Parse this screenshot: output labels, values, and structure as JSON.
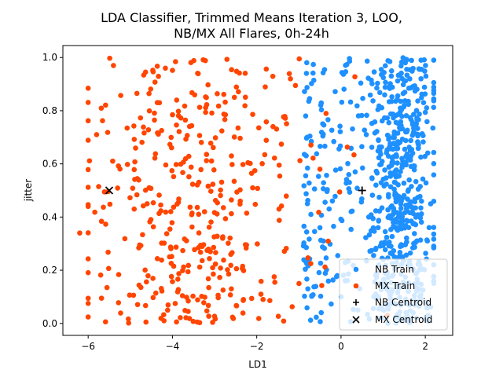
{
  "chart_data": {
    "type": "scatter",
    "title_lines": [
      "LDA Classifier, Trimmed Means Iteration 3, LOO,",
      "NB/MX All Flares, 0h-24h"
    ],
    "xlabel": "LD1",
    "ylabel": "jitter",
    "xlim": [
      -6.6,
      2.65
    ],
    "ylim": [
      -0.045,
      1.045
    ],
    "xticks": [
      -6,
      -4,
      -2,
      0,
      2
    ],
    "xtick_labels": [
      "−6",
      "−4",
      "−2",
      "0",
      "2"
    ],
    "yticks": [
      0.0,
      0.2,
      0.4,
      0.6,
      0.8,
      1.0
    ],
    "ytick_labels": [
      "0.0",
      "0.2",
      "0.4",
      "0.6",
      "0.8",
      "1.0"
    ],
    "grid": false,
    "legend_position": "lower-right",
    "series": [
      {
        "name": "NB Train",
        "kind": "points",
        "color": "#1e90ff",
        "approx_count": 700,
        "x_range": [
          -0.9,
          2.2
        ],
        "y_range": [
          0.0,
          1.0
        ],
        "density_peak_x": 1.4,
        "sample_points": [
          [
            1.2,
            0.95
          ],
          [
            1.5,
            0.82
          ],
          [
            1.7,
            0.64
          ],
          [
            1.3,
            0.47
          ],
          [
            1.8,
            0.31
          ],
          [
            1.6,
            0.12
          ],
          [
            0.6,
            0.71
          ],
          [
            0.2,
            0.53
          ],
          [
            0.9,
            0.22
          ],
          [
            -0.5,
            0.36
          ],
          [
            1.9,
            0.99
          ],
          [
            0.4,
            0.05
          ]
        ]
      },
      {
        "name": "MX Train",
        "kind": "points",
        "color": "#ff4500",
        "approx_count": 400,
        "x_range": [
          -6.2,
          1.4
        ],
        "y_range": [
          0.0,
          1.0
        ],
        "density_peak_x": -3.5,
        "sample_points": [
          [
            -6.2,
            0.34
          ],
          [
            -5.8,
            0.71
          ],
          [
            -5.4,
            0.97
          ],
          [
            -4.6,
            0.45
          ],
          [
            -4.2,
            0.01
          ],
          [
            -3.9,
            0.84
          ],
          [
            -3.1,
            0.27
          ],
          [
            -2.6,
            0.63
          ],
          [
            -1.9,
            0.11
          ],
          [
            -1.2,
            0.92
          ],
          [
            -0.5,
            0.58
          ],
          [
            1.1,
            0.03
          ]
        ]
      },
      {
        "name": "NB Centroid",
        "kind": "marker",
        "marker": "+",
        "color": "#000000",
        "x": 0.5,
        "y": 0.5
      },
      {
        "name": "MX Centroid",
        "kind": "marker",
        "marker": "x",
        "color": "#000000",
        "x": -5.5,
        "y": 0.5
      }
    ]
  }
}
